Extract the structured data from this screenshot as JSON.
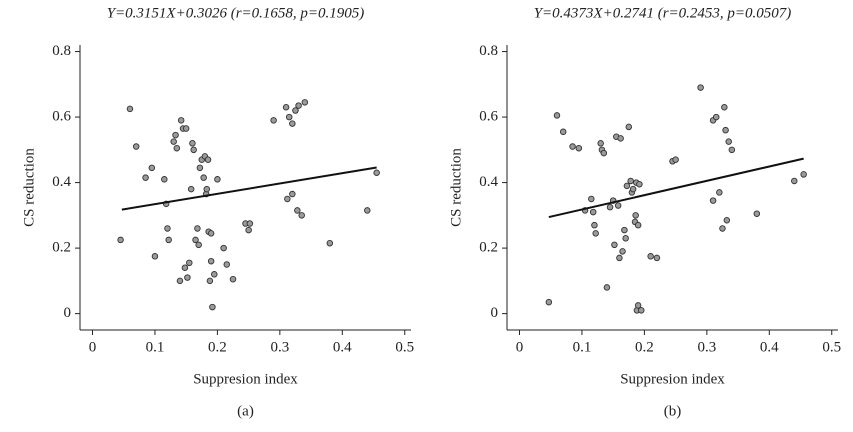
{
  "chart_data": [
    {
      "type": "scatter",
      "title": "Y=0.3151X+0.3026 (r=0.1658, p=0.1905)",
      "x_label": "Suppresion index",
      "y_label": "CS reduction",
      "caption": "(a)",
      "xlim": [
        -0.02,
        0.51
      ],
      "ylim": [
        -0.05,
        0.82
      ],
      "xticks": [
        0,
        0.1,
        0.2,
        0.3,
        0.4,
        0.5
      ],
      "yticks": [
        0,
        0.2,
        0.4,
        0.6,
        0.8
      ],
      "color": "#9a9a9a",
      "x": [
        0.045,
        0.06,
        0.07,
        0.085,
        0.095,
        0.1,
        0.115,
        0.118,
        0.12,
        0.122,
        0.13,
        0.133,
        0.135,
        0.14,
        0.142,
        0.145,
        0.148,
        0.15,
        0.152,
        0.155,
        0.158,
        0.16,
        0.162,
        0.165,
        0.168,
        0.17,
        0.172,
        0.175,
        0.178,
        0.18,
        0.182,
        0.183,
        0.185,
        0.186,
        0.188,
        0.19,
        0.19,
        0.192,
        0.195,
        0.2,
        0.21,
        0.215,
        0.225,
        0.245,
        0.25,
        0.252,
        0.29,
        0.31,
        0.312,
        0.315,
        0.32,
        0.32,
        0.325,
        0.328,
        0.33,
        0.335,
        0.34,
        0.38,
        0.44,
        0.455
      ],
      "values": [
        0.225,
        0.625,
        0.51,
        0.415,
        0.445,
        0.175,
        0.41,
        0.335,
        0.26,
        0.225,
        0.525,
        0.545,
        0.505,
        0.1,
        0.59,
        0.565,
        0.14,
        0.565,
        0.11,
        0.155,
        0.38,
        0.52,
        0.5,
        0.225,
        0.26,
        0.21,
        0.445,
        0.47,
        0.415,
        0.48,
        0.365,
        0.38,
        0.47,
        0.25,
        0.1,
        0.16,
        0.245,
        0.02,
        0.12,
        0.41,
        0.2,
        0.15,
        0.105,
        0.275,
        0.255,
        0.275,
        0.59,
        0.63,
        0.35,
        0.6,
        0.365,
        0.58,
        0.62,
        0.315,
        0.635,
        0.3,
        0.645,
        0.215,
        0.315,
        0.43
      ],
      "trend_line": {
        "x": [
          0.047,
          0.455
        ],
        "y": [
          0.3174,
          0.446
        ]
      }
    },
    {
      "type": "scatter",
      "title": "Y=0.4373X+0.2741 (r=0.2453, p=0.0507)",
      "x_label": "Suppresion index",
      "y_label": "CS reduction",
      "caption": "(b)",
      "xlim": [
        -0.02,
        0.51
      ],
      "ylim": [
        -0.05,
        0.82
      ],
      "xticks": [
        0,
        0.1,
        0.2,
        0.3,
        0.4,
        0.5
      ],
      "yticks": [
        0,
        0.2,
        0.4,
        0.6,
        0.8
      ],
      "color": "#9a9a9a",
      "x": [
        0.047,
        0.06,
        0.07,
        0.085,
        0.095,
        0.105,
        0.115,
        0.118,
        0.12,
        0.122,
        0.13,
        0.132,
        0.135,
        0.14,
        0.145,
        0.15,
        0.152,
        0.155,
        0.158,
        0.16,
        0.162,
        0.165,
        0.168,
        0.17,
        0.172,
        0.175,
        0.178,
        0.18,
        0.182,
        0.185,
        0.186,
        0.187,
        0.188,
        0.19,
        0.19,
        0.192,
        0.195,
        0.21,
        0.22,
        0.245,
        0.25,
        0.29,
        0.31,
        0.31,
        0.315,
        0.32,
        0.325,
        0.328,
        0.33,
        0.332,
        0.335,
        0.34,
        0.38,
        0.44,
        0.455
      ],
      "values": [
        0.035,
        0.605,
        0.555,
        0.51,
        0.505,
        0.315,
        0.35,
        0.31,
        0.27,
        0.245,
        0.52,
        0.5,
        0.49,
        0.08,
        0.325,
        0.345,
        0.21,
        0.54,
        0.33,
        0.17,
        0.535,
        0.19,
        0.255,
        0.23,
        0.39,
        0.57,
        0.405,
        0.37,
        0.38,
        0.28,
        0.3,
        0.4,
        0.01,
        0.025,
        0.27,
        0.395,
        0.01,
        0.175,
        0.17,
        0.465,
        0.47,
        0.69,
        0.345,
        0.59,
        0.6,
        0.37,
        0.26,
        0.63,
        0.56,
        0.285,
        0.525,
        0.5,
        0.305,
        0.405,
        0.425
      ],
      "trend_line": {
        "x": [
          0.047,
          0.455
        ],
        "y": [
          0.2947,
          0.4731
        ]
      }
    }
  ]
}
